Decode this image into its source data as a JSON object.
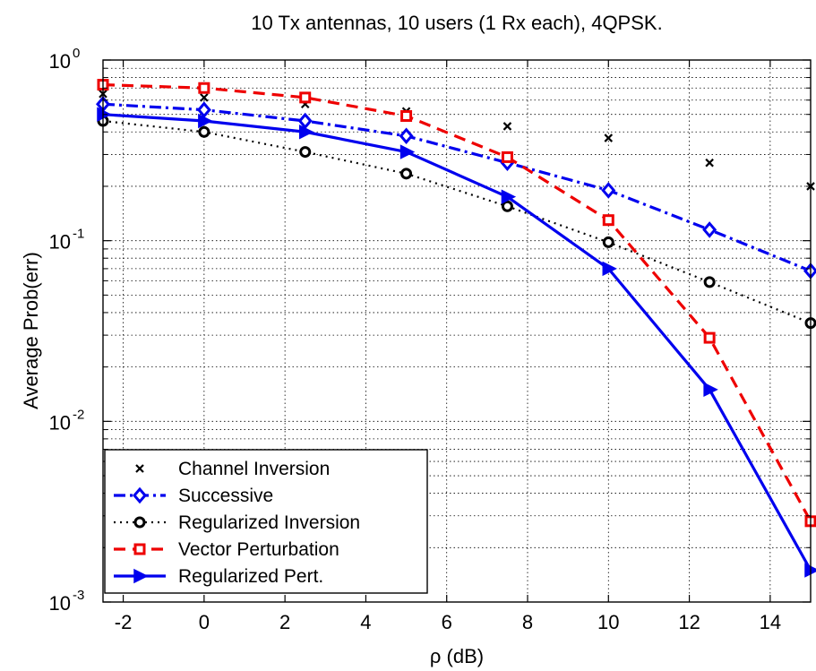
{
  "chart_data": {
    "type": "line",
    "title": "10 Tx antennas, 10 users (1 Rx each), 4QPSK.",
    "xlabel": "ρ (dB)",
    "ylabel": "Average Prob(err)",
    "xlim": [
      -2.5,
      15
    ],
    "ylim": [
      0.001,
      1
    ],
    "yscale": "log",
    "grid": true,
    "x_ticks": [
      "-2",
      "0",
      "2",
      "4",
      "6",
      "8",
      "10",
      "12",
      "14"
    ],
    "x_tick_values": [
      -2,
      0,
      2,
      4,
      6,
      8,
      10,
      12,
      14
    ],
    "y_ticks": [
      {
        "base": "10",
        "exp": "0",
        "value": 1
      },
      {
        "base": "10",
        "exp": "-1",
        "value": 0.1
      },
      {
        "base": "10",
        "exp": "-2",
        "value": 0.01
      },
      {
        "base": "10",
        "exp": "-3",
        "value": 0.001
      }
    ],
    "legend_position": "bottom-left",
    "x": [
      -2.5,
      0,
      2.5,
      5,
      7.5,
      10,
      12.5,
      15
    ],
    "series": [
      {
        "name": "Channel Inversion",
        "values": [
          0.65,
          0.62,
          0.57,
          0.52,
          0.43,
          0.37,
          0.27,
          0.2
        ],
        "color": "#000000",
        "linestyle": "none",
        "marker": "x"
      },
      {
        "name": "Successive",
        "values": [
          0.57,
          0.53,
          0.46,
          0.38,
          0.27,
          0.19,
          0.115,
          0.068
        ],
        "color": "#0000ee",
        "linestyle": "dashdot",
        "marker": "diamond"
      },
      {
        "name": "Regularized Inversion",
        "values": [
          0.46,
          0.4,
          0.31,
          0.235,
          0.155,
          0.098,
          0.059,
          0.035
        ],
        "color": "#000000",
        "linestyle": "dotted",
        "marker": "circle"
      },
      {
        "name": "Vector Perturbation",
        "values": [
          0.73,
          0.7,
          0.62,
          0.49,
          0.29,
          0.13,
          0.029,
          0.0028
        ],
        "color": "#ee0000",
        "linestyle": "dashed",
        "marker": "square"
      },
      {
        "name": "Regularized Pert.",
        "values": [
          0.5,
          0.46,
          0.4,
          0.31,
          0.175,
          0.07,
          0.015,
          0.0015
        ],
        "color": "#0000ee",
        "linestyle": "solid",
        "marker": "triangle-right"
      }
    ]
  }
}
